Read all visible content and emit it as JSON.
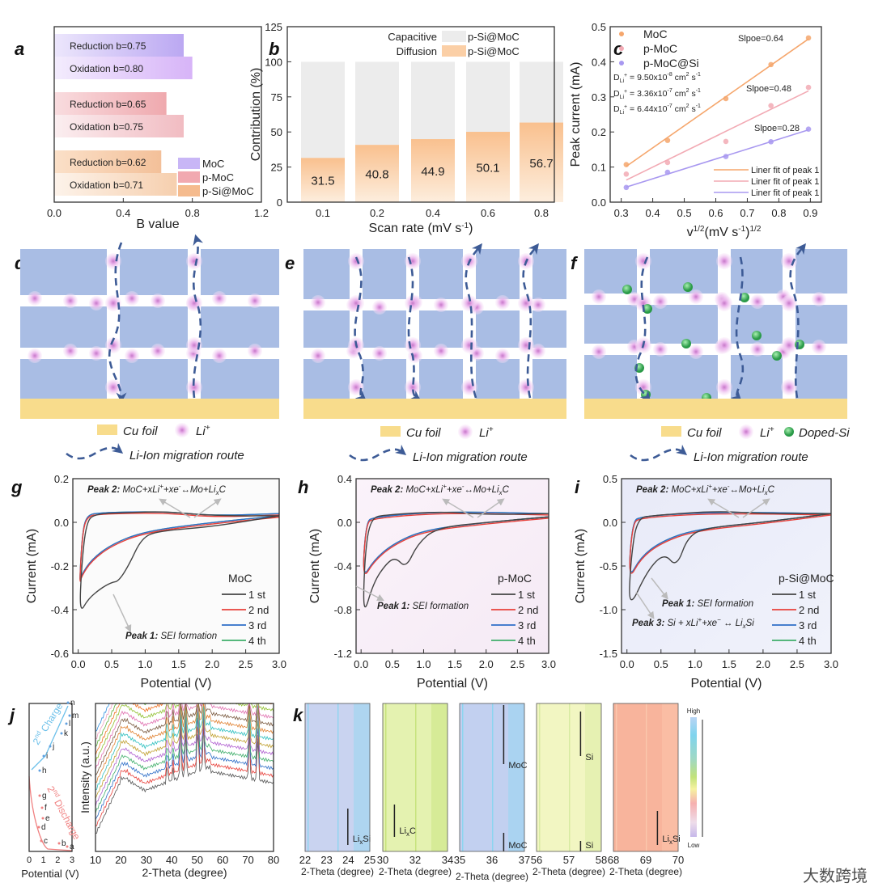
{
  "panel_labels": {
    "a": "a",
    "b": "b",
    "c": "c",
    "d": "d",
    "e": "e",
    "f": "f",
    "g": "g",
    "h": "h",
    "i": "i",
    "j": "j",
    "k": "k"
  },
  "colors": {
    "moc": "#b9a6f2",
    "pmoc": "#f1a9b0",
    "psi": "#f5bb8e",
    "capacitive": "#ececec",
    "diffusion": "#fbcfa6",
    "cu": "#f8dc8c",
    "block": "#a9bde4",
    "li": "#e7a6e6",
    "si": "#4fbf6a",
    "route": "#3d5b96",
    "cyc1": "#444444",
    "cyc2": "#e8403a",
    "cyc3": "#2f6fc8",
    "cyc4": "#3fae6a"
  },
  "chart_data": [
    {
      "id": "a",
      "type": "bar",
      "orientation": "horizontal",
      "xlabel": "B value",
      "xlim": [
        0,
        1.2
      ],
      "xticks": [
        "0.0",
        "0.4",
        "0.8",
        "1.2"
      ],
      "groups": [
        {
          "name": "MoC",
          "bars": [
            {
              "label": "Reduction b=0.75",
              "value": 0.75
            },
            {
              "label": "Oxidation  b=0.80",
              "value": 0.8
            }
          ]
        },
        {
          "name": "p-MoC",
          "bars": [
            {
              "label": "Reduction b=0.65",
              "value": 0.65
            },
            {
              "label": "Oxidation  b=0.75",
              "value": 0.75
            }
          ]
        },
        {
          "name": "p-Si@MoC",
          "bars": [
            {
              "label": "Reduction b=0.62",
              "value": 0.62
            },
            {
              "label": "Oxidation  b=0.71",
              "value": 0.71
            }
          ]
        }
      ],
      "legend": [
        "MoC",
        "p-MoC",
        "p-Si@MoC"
      ],
      "legend_position": "bottom-right"
    },
    {
      "id": "b",
      "type": "bar",
      "stacked": true,
      "xlabel": "Scan rate (mV s",
      "xlabel_sup": "-1",
      "xlabel_end": ")",
      "ylabel": "Contribution (%)",
      "ylim": [
        0,
        125
      ],
      "yticks": [
        "0",
        "25",
        "50",
        "75",
        "100",
        "125"
      ],
      "categories": [
        "0.1",
        "0.2",
        "0.4",
        "0.6",
        "0.8"
      ],
      "series": [
        {
          "name": "Diffusion",
          "values": [
            31.5,
            40.8,
            44.9,
            50.1,
            56.7
          ]
        },
        {
          "name": "Capacitive",
          "values": [
            68.5,
            59.2,
            55.1,
            49.9,
            43.3
          ]
        }
      ],
      "data_labels": [
        "31.5",
        "40.8",
        "44.9",
        "50.1",
        "56.7"
      ],
      "legend": [
        {
          "name": "Capacitive",
          "sample": "p-Si@MoC"
        },
        {
          "name": "Diffusion",
          "sample": "p-Si@MoC"
        }
      ],
      "legend_position": "top-right"
    },
    {
      "id": "c",
      "type": "scatter",
      "xlabel_pre": "v",
      "xlabel_sup": "1/2",
      "xlabel_mid": "(mV s",
      "xlabel_sup2": "-1",
      "xlabel_end": ")",
      "xlabel_sup3": "1/2",
      "ylabel": "Peak current (mA)",
      "xlim": [
        0.265,
        0.935
      ],
      "ylim": [
        0,
        0.5
      ],
      "xticks": [
        "0.3",
        "0.4",
        "0.5",
        "0.6",
        "0.7",
        "0.8",
        "0.9"
      ],
      "yticks": [
        "0.0",
        "0.1",
        "0.2",
        "0.3",
        "0.4",
        "0.5"
      ],
      "x": [
        0.316,
        0.447,
        0.632,
        0.775,
        0.894
      ],
      "series": [
        {
          "name": "MoC",
          "values": [
            0.107,
            0.176,
            0.295,
            0.392,
            0.468
          ],
          "fit": [
            [
              0.316,
              0.102
            ],
            [
              0.894,
              0.465
            ]
          ],
          "slope_label": "Slpoe=0.64",
          "fit_label": "Liner fit of peak 1",
          "d_label": "D",
          "d_sub": "Li",
          "d_sup": "+",
          "d_value": " = 6.44x10",
          "d_exp": "-7",
          "d_unit": " cm",
          "d_unit_sup": "2",
          "d_tail": " s",
          "d_tail_sup": "-1"
        },
        {
          "name": "p-MoC",
          "values": [
            0.08,
            0.113,
            0.173,
            0.275,
            0.327
          ],
          "fit": [
            [
              0.316,
              0.063
            ],
            [
              0.894,
              0.317
            ]
          ],
          "slope_label": "Slpoe=0.48",
          "fit_label": "Liner fit of peak 1",
          "d_label": "D",
          "d_sub": "Li",
          "d_sup": "+",
          "d_value": " = 3.36x10",
          "d_exp": "-7",
          "d_unit": " cm",
          "d_unit_sup": "2",
          "d_tail": " s",
          "d_tail_sup": "-1"
        },
        {
          "name": "p-MoC@Si",
          "values": [
            0.042,
            0.085,
            0.13,
            0.172,
            0.208
          ],
          "fit": [
            [
              0.316,
              0.043
            ],
            [
              0.894,
              0.206
            ]
          ],
          "slope_label": "Slpoe=0.28",
          "fit_label": "Liner fit of peak 1",
          "d_label": "D",
          "d_sub": "Li",
          "d_sup": "+",
          "d_value": " = 9.50x10",
          "d_exp": "-8",
          "d_unit": " cm",
          "d_unit_sup": "2",
          "d_tail": " s",
          "d_tail_sup": "-1"
        }
      ]
    },
    {
      "id": "g",
      "type": "line",
      "sample": "MoC",
      "xlabel": "Potential (V)",
      "ylabel": "Current (mA)",
      "xlim": [
        -0.08,
        3.0
      ],
      "ylim": [
        -0.6,
        0.2
      ],
      "xticks": [
        "0.0",
        "0.5",
        "1.0",
        "1.5",
        "2.0",
        "2.5",
        "3.0"
      ],
      "yticks": [
        "-0.6",
        "-0.4",
        "-0.2",
        "0.0",
        "0.2"
      ],
      "legend": [
        "1 st",
        "2 nd",
        "3 rd",
        "4 th"
      ],
      "annotations": {
        "peak2_b": "Peak 2:",
        "peak2": " MoC+xLi",
        "peak2_sup": "+",
        "peak2_b2": "+xe",
        "peak2_sup2": "-",
        "peak2_end": "↔Mo+Li",
        "peak2_sub": "x",
        "peak2_c": "C",
        "peak1_b": "Peak 1:",
        "peak1": " SEI formation"
      },
      "cycle1": [
        [
          3.0,
          0.03
        ],
        [
          2.0,
          -0.02
        ],
        [
          1.2,
          -0.04
        ],
        [
          0.95,
          -0.07
        ],
        [
          0.75,
          -0.2
        ],
        [
          0.6,
          -0.27
        ],
        [
          0.5,
          -0.275
        ],
        [
          0.35,
          -0.3
        ],
        [
          0.15,
          -0.35
        ],
        [
          0.02,
          -0.42
        ],
        [
          0.05,
          -0.2
        ],
        [
          0.12,
          0.0
        ],
        [
          0.25,
          0.04
        ],
        [
          0.8,
          0.045
        ],
        [
          1.3,
          0.05
        ],
        [
          2.0,
          0.03
        ],
        [
          3.0,
          0.03
        ]
      ],
      "cycles_2_4": [
        [
          3.0,
          0.03
        ],
        [
          2.0,
          0.0
        ],
        [
          1.0,
          -0.04
        ],
        [
          0.5,
          -0.1
        ],
        [
          0.2,
          -0.17
        ],
        [
          0.05,
          -0.24
        ],
        [
          0.02,
          -0.28
        ],
        [
          0.06,
          -0.06
        ],
        [
          0.12,
          0.03
        ],
        [
          0.3,
          0.045
        ],
        [
          1.3,
          0.05
        ],
        [
          2.0,
          0.03
        ],
        [
          3.0,
          0.04
        ]
      ]
    },
    {
      "id": "h",
      "type": "line",
      "sample": "p-MoC",
      "xlabel": "Potential (V)",
      "ylabel": "Current (mA)",
      "xlim": [
        -0.08,
        3.0
      ],
      "ylim": [
        -1.2,
        0.4
      ],
      "xticks": [
        "0.0",
        "0.5",
        "1.0",
        "1.5",
        "2.0",
        "2.5",
        "3.0"
      ],
      "yticks": [
        "-1.2",
        "-0.8",
        "-0.4",
        "0.0",
        "0.4"
      ],
      "legend": [
        "1 st",
        "2 nd",
        "3 rd",
        "4 th"
      ],
      "annotations": {
        "peak2_b": "Peak 2:",
        "peak2": " MoC+xLi",
        "peak2_sup": "+",
        "peak2_b2": "+xe",
        "peak2_sup2": "-",
        "peak2_end": "↔Mo+Li",
        "peak2_sub": "x",
        "peak2_c": "C",
        "peak1_b": "Peak 1:",
        "peak1": " SEI formation"
      },
      "cycle1": [
        [
          3.0,
          0.05
        ],
        [
          2.0,
          0.0
        ],
        [
          1.2,
          -0.05
        ],
        [
          0.9,
          -0.2
        ],
        [
          0.72,
          -0.42
        ],
        [
          0.55,
          -0.32
        ],
        [
          0.4,
          -0.38
        ],
        [
          0.2,
          -0.55
        ],
        [
          0.03,
          -0.88
        ],
        [
          0.06,
          -0.3
        ],
        [
          0.15,
          0.04
        ],
        [
          0.4,
          0.07
        ],
        [
          1.3,
          0.1
        ],
        [
          2.0,
          0.07
        ],
        [
          3.0,
          0.08
        ]
      ],
      "cycles_2_4": [
        [
          3.0,
          0.05
        ],
        [
          2.0,
          0.0
        ],
        [
          1.0,
          -0.07
        ],
        [
          0.5,
          -0.2
        ],
        [
          0.2,
          -0.35
        ],
        [
          0.02,
          -0.52
        ],
        [
          0.08,
          0.0
        ],
        [
          0.2,
          0.05
        ],
        [
          1.3,
          0.1
        ],
        [
          3.0,
          0.08
        ]
      ]
    },
    {
      "id": "i",
      "type": "line",
      "sample": "p-Si@MoC",
      "xlabel": "Potential (V)",
      "ylabel": "Current (mA)",
      "xlim": [
        -0.08,
        3.0
      ],
      "ylim": [
        -1.5,
        0.5
      ],
      "xticks": [
        "0.0",
        "0.5",
        "1.0",
        "1.5",
        "2.0",
        "2.5",
        "3.0"
      ],
      "yticks": [
        "-1.5",
        "-1.0",
        "-0.5",
        "0.0",
        "0.5"
      ],
      "legend": [
        "1 st",
        "2 nd",
        "3 rd",
        "4 th"
      ],
      "annotations": {
        "peak2_b": "Peak 2:",
        "peak2": " MoC+xLi",
        "peak2_sup": "+",
        "peak2_b2": "+xe",
        "peak2_sup2": "-",
        "peak2_end": "↔Mo+Li",
        "peak2_sub": "x",
        "peak2_c": "C",
        "peak1_b": "Peak 1:",
        "peak1": " SEI formation",
        "peak3_b": "Peak 3:",
        "peak3": " Si + xLi",
        "peak3_sup": "+",
        "peak3_b2": "+xe",
        "peak3_sup2": "−",
        "peak3_end": " ↔ Li",
        "peak3_sub": "x",
        "peak3_c": "Si"
      },
      "cycle1": [
        [
          3.0,
          0.1
        ],
        [
          2.0,
          0.0
        ],
        [
          1.2,
          -0.06
        ],
        [
          0.9,
          -0.15
        ],
        [
          0.73,
          -0.52
        ],
        [
          0.55,
          -0.35
        ],
        [
          0.3,
          -0.55
        ],
        [
          0.02,
          -1.02
        ],
        [
          0.06,
          -0.4
        ],
        [
          0.15,
          0.05
        ],
        [
          0.4,
          0.08
        ],
        [
          1.3,
          0.13
        ],
        [
          2.0,
          0.1
        ],
        [
          3.0,
          0.1
        ]
      ],
      "cycles_2_4": [
        [
          3.0,
          0.1
        ],
        [
          2.0,
          0.0
        ],
        [
          1.0,
          -0.08
        ],
        [
          0.5,
          -0.22
        ],
        [
          0.2,
          -0.4
        ],
        [
          0.02,
          -0.66
        ],
        [
          0.08,
          0.0
        ],
        [
          0.2,
          0.07
        ],
        [
          1.3,
          0.12
        ],
        [
          3.0,
          0.1
        ]
      ]
    },
    {
      "id": "j_left",
      "type": "line",
      "xlabel": "Potential (V)",
      "xticks": [
        "0",
        "1",
        "2",
        "3"
      ],
      "points": [
        "a",
        "b",
        "c",
        "d",
        "e",
        "f",
        "g",
        "h",
        "i",
        "j",
        "k",
        "l",
        "m",
        "n"
      ],
      "charge_label": "2",
      "charge_sup": "nd",
      "charge_end": " Charge",
      "discharge_label": "2",
      "discharge_sup": "nd",
      "discharge_end": " Discharge"
    },
    {
      "id": "j_main",
      "type": "line",
      "xlabel": "2-Theta (degree)",
      "ylabel": "Intensity (a.u.)",
      "xlim": [
        10,
        80
      ],
      "xticks": [
        "10",
        "20",
        "30",
        "40",
        "50",
        "60",
        "70",
        "80"
      ],
      "series_colors": [
        "#555555",
        "#e8403a",
        "#2f6fc8",
        "#3fae6a",
        "#b060d0",
        "#c0a030",
        "#30c0c0",
        "#e08030",
        "#7a5a40",
        "#e070b0",
        "#90c030",
        "#f07020",
        "#60b040",
        "#f0a0c0",
        "#3090e0"
      ]
    },
    {
      "id": "k",
      "type": "heatmap",
      "colorbar_high": "High",
      "colorbar_low": "Low",
      "maps": [
        {
          "xticks": [
            "22",
            "23",
            "24",
            "25"
          ],
          "xlabel": "2-Theta (degree)",
          "marks": [
            {
              "label": "Li",
              "sub": "x",
              "tail": "Si"
            }
          ],
          "color": "#c9d3f0",
          "accent": "#8fd7f0"
        },
        {
          "xticks": [
            "30",
            "32",
            "34"
          ],
          "xlabel": "2-Theta (degree)",
          "marks": [
            {
              "label": "Li",
              "sub": "x",
              "tail": "C"
            }
          ],
          "color": "#e4f2b0",
          "accent": "#c5e27a"
        },
        {
          "xticks": [
            "35",
            "36",
            "37"
          ],
          "xlabel": "2-Theta (degree)",
          "marks": [
            {
              "label": "MoC",
              "sub": "",
              "tail": ""
            },
            {
              "label": "MoC",
              "sub": "",
              "tail": ""
            }
          ],
          "color": "#c2d0f0",
          "accent": "#8dd6f2"
        },
        {
          "xticks": [
            "56",
            "57",
            "58"
          ],
          "xlabel": "2-Theta (degree)",
          "marks": [
            {
              "label": "Si",
              "sub": "",
              "tail": ""
            },
            {
              "label": "Si",
              "sub": "",
              "tail": ""
            }
          ],
          "color": "#f2f6c2",
          "accent": "#d8eca0"
        },
        {
          "xticks": [
            "68",
            "69",
            "70"
          ],
          "xlabel": "2-Theta (degree)",
          "marks": [
            {
              "label": "Li",
              "sub": "x",
              "tail": "Si"
            }
          ],
          "color": "#f8b49c",
          "accent": "#fcc8b0"
        }
      ]
    }
  ],
  "schematics": {
    "cu_foil": "Cu foil",
    "li": "Li",
    "li_sup": "+",
    "route": "Li-Ion migration route",
    "doped_si": "Doped-Si"
  },
  "watermark": "大数跨境"
}
